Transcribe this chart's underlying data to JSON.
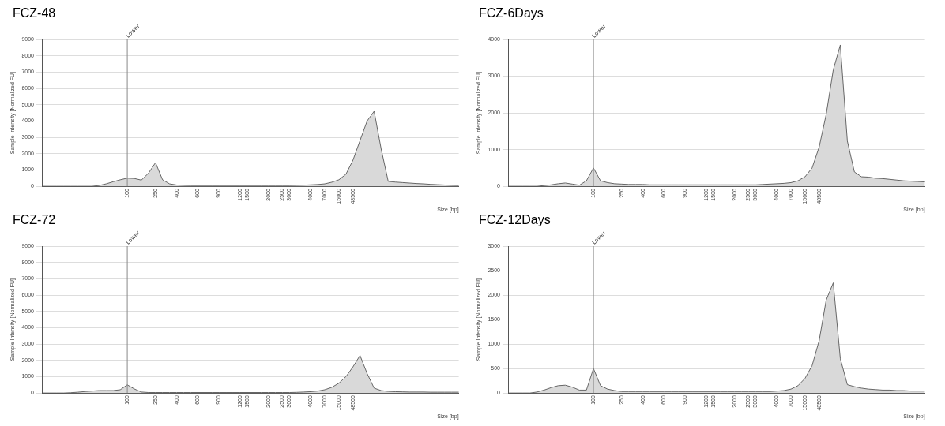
{
  "chart_data": [
    {
      "type": "area",
      "title": "FCZ-48",
      "xlabel": "Size [bp]",
      "ylabel": "Sample Intensity [Normalized FU]",
      "categories": [
        null,
        null,
        null,
        null,
        null,
        null,
        null,
        null,
        null,
        null,
        null,
        null,
        "100",
        null,
        null,
        null,
        "250",
        null,
        null,
        "400",
        null,
        null,
        "600",
        null,
        null,
        "900",
        null,
        null,
        "1200",
        "1500",
        null,
        null,
        "2000",
        null,
        "2500",
        "3000",
        null,
        null,
        "4000",
        null,
        "7000",
        null,
        "15000",
        null,
        "48500",
        null,
        null,
        null,
        null,
        null,
        null,
        null,
        null,
        null,
        null,
        null,
        null,
        null,
        null,
        null
      ],
      "series": [
        {
          "color": "#d9d9d9",
          "values": [
            0,
            0,
            0,
            0,
            0,
            0,
            0,
            0,
            50,
            150,
            280,
            400,
            500,
            480,
            380,
            800,
            1450,
            400,
            150,
            80,
            60,
            50,
            50,
            50,
            50,
            50,
            50,
            50,
            50,
            50,
            50,
            50,
            50,
            50,
            50,
            50,
            60,
            70,
            90,
            110,
            150,
            250,
            400,
            740,
            1600,
            2800,
            4000,
            4600,
            2280,
            300,
            260,
            230,
            200,
            170,
            150,
            120,
            100,
            80,
            60,
            50
          ]
        }
      ],
      "ylim": [
        0,
        9000
      ],
      "yticks": [
        0,
        1000,
        2000,
        3000,
        4000,
        5000,
        6000,
        7000,
        8000,
        9000
      ],
      "grid": "y",
      "ref_lines": [
        {
          "axis": "x",
          "value": "100",
          "label": "Lower"
        }
      ]
    },
    {
      "type": "area",
      "title": "FCZ-6Days",
      "xlabel": "Size [bp]",
      "ylabel": "Sample Intensity [Normalized FU]",
      "categories": [
        null,
        null,
        null,
        null,
        null,
        null,
        null,
        null,
        null,
        null,
        null,
        null,
        "100",
        null,
        null,
        null,
        "250",
        null,
        null,
        "400",
        null,
        null,
        "600",
        null,
        null,
        "900",
        null,
        null,
        "1200",
        "1500",
        null,
        null,
        "2000",
        null,
        "2500",
        "3000",
        null,
        null,
        "4000",
        null,
        "7000",
        null,
        "15000",
        null,
        "48500",
        null,
        null,
        null,
        null,
        null,
        null,
        null,
        null,
        null,
        null,
        null,
        null,
        null,
        null,
        null
      ],
      "series": [
        {
          "color": "#d9d9d9",
          "values": [
            0,
            0,
            0,
            0,
            0,
            20,
            40,
            70,
            90,
            60,
            30,
            150,
            500,
            150,
            100,
            70,
            60,
            50,
            50,
            50,
            40,
            40,
            40,
            40,
            40,
            40,
            40,
            40,
            40,
            40,
            40,
            40,
            40,
            40,
            40,
            40,
            50,
            60,
            70,
            80,
            100,
            150,
            260,
            500,
            1070,
            1960,
            3170,
            3850,
            1230,
            390,
            260,
            250,
            220,
            210,
            190,
            170,
            150,
            140,
            130,
            120
          ]
        }
      ],
      "ylim": [
        0,
        4000
      ],
      "yticks": [
        0,
        1000,
        2000,
        3000,
        4000
      ],
      "grid": "y",
      "ref_lines": [
        {
          "axis": "x",
          "value": "100",
          "label": "Lower"
        }
      ]
    },
    {
      "type": "area",
      "title": "FCZ-72",
      "xlabel": "Size [bp]",
      "ylabel": "Sample Intensity [Normalized FU]",
      "categories": [
        null,
        null,
        null,
        null,
        null,
        null,
        null,
        null,
        null,
        null,
        null,
        null,
        "100",
        null,
        null,
        null,
        "250",
        null,
        null,
        "400",
        null,
        null,
        "600",
        null,
        null,
        "900",
        null,
        null,
        "1200",
        "1500",
        null,
        null,
        "2000",
        null,
        "2500",
        "3000",
        null,
        null,
        "4000",
        null,
        "7000",
        null,
        "15000",
        null,
        "48500",
        null,
        null,
        null,
        null,
        null,
        null,
        null,
        null,
        null,
        null,
        null,
        null,
        null,
        null,
        null
      ],
      "series": [
        {
          "color": "#d9d9d9",
          "values": [
            0,
            0,
            0,
            0,
            20,
            50,
            90,
            120,
            150,
            150,
            150,
            200,
            500,
            250,
            60,
            30,
            30,
            30,
            30,
            30,
            30,
            30,
            30,
            30,
            30,
            30,
            30,
            30,
            30,
            30,
            30,
            30,
            30,
            30,
            30,
            30,
            40,
            60,
            80,
            120,
            200,
            350,
            600,
            1000,
            1600,
            2300,
            1200,
            300,
            150,
            100,
            80,
            70,
            60,
            60,
            60,
            50,
            50,
            50,
            50,
            50
          ]
        }
      ],
      "ylim": [
        0,
        9000
      ],
      "yticks": [
        0,
        1000,
        2000,
        3000,
        4000,
        5000,
        6000,
        7000,
        8000,
        9000
      ],
      "grid": "y",
      "ref_lines": [
        {
          "axis": "x",
          "value": "100",
          "label": "Lower"
        }
      ]
    },
    {
      "type": "area",
      "title": "FCZ-12Days",
      "xlabel": "Size [bp]",
      "ylabel": "Sample Intensity [Normalized FU]",
      "categories": [
        null,
        null,
        null,
        null,
        null,
        null,
        null,
        null,
        null,
        null,
        null,
        null,
        "100",
        null,
        null,
        null,
        "250",
        null,
        null,
        "400",
        null,
        null,
        "600",
        null,
        null,
        "900",
        null,
        null,
        "1200",
        "1500",
        null,
        null,
        "2000",
        null,
        "2500",
        "3000",
        null,
        null,
        "4000",
        null,
        "7000",
        null,
        "15000",
        null,
        "48500",
        null,
        null,
        null,
        null,
        null,
        null,
        null,
        null,
        null,
        null,
        null,
        null,
        null,
        null,
        null
      ],
      "series": [
        {
          "color": "#d9d9d9",
          "values": [
            0,
            0,
            0,
            0,
            20,
            60,
            110,
            150,
            160,
            120,
            60,
            60,
            500,
            150,
            80,
            50,
            30,
            30,
            30,
            30,
            30,
            30,
            30,
            30,
            30,
            30,
            30,
            30,
            30,
            30,
            30,
            30,
            30,
            30,
            30,
            30,
            30,
            30,
            40,
            50,
            80,
            150,
            300,
            560,
            1070,
            1900,
            2250,
            700,
            170,
            130,
            100,
            80,
            70,
            60,
            60,
            50,
            50,
            40,
            40,
            40
          ]
        }
      ],
      "ylim": [
        0,
        3000
      ],
      "yticks": [
        0,
        500,
        1000,
        1500,
        2000,
        2500,
        3000
      ],
      "grid": "y",
      "ref_lines": [
        {
          "axis": "x",
          "value": "100",
          "label": "Lower"
        }
      ]
    }
  ]
}
